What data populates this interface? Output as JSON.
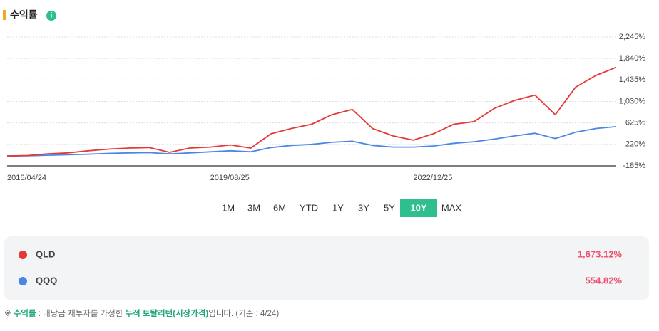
{
  "header": {
    "title": "수익률",
    "info_icon": "i"
  },
  "chart_data": {
    "type": "line",
    "categories": [
      "2016/04/24",
      null,
      null,
      null,
      null,
      null,
      null,
      null,
      null,
      null,
      "2019/08/25",
      null,
      null,
      null,
      null,
      null,
      null,
      null,
      null,
      null,
      "2022/12/25",
      null,
      null,
      null,
      null,
      null,
      null,
      null,
      null,
      null,
      null
    ],
    "series": [
      {
        "name": "QLD",
        "color": "#e53935",
        "values": [
          0,
          10,
          40,
          60,
          100,
          130,
          150,
          160,
          70,
          150,
          170,
          210,
          150,
          420,
          520,
          600,
          780,
          880,
          520,
          380,
          300,
          420,
          600,
          650,
          900,
          1050,
          1150,
          780,
          1300,
          1520,
          1673.12
        ]
      },
      {
        "name": "QQQ",
        "color": "#4a86e8",
        "values": [
          0,
          5,
          15,
          25,
          35,
          50,
          60,
          65,
          40,
          60,
          80,
          100,
          80,
          160,
          200,
          220,
          260,
          280,
          200,
          170,
          170,
          190,
          240,
          270,
          320,
          380,
          430,
          330,
          450,
          520,
          554.82
        ]
      }
    ],
    "ylim": [
      -185,
      2245
    ],
    "yticks": [
      {
        "value": -185,
        "label": "-185%"
      },
      {
        "value": 220,
        "label": "220%"
      },
      {
        "value": 625,
        "label": "625%"
      },
      {
        "value": 1030,
        "label": "1,030%"
      },
      {
        "value": 1435,
        "label": "1,435%"
      },
      {
        "value": 1840,
        "label": "1,840%"
      },
      {
        "value": 2245,
        "label": "2,245%"
      }
    ],
    "grid": true
  },
  "periods": [
    "1M",
    "3M",
    "6M",
    "YTD",
    "1Y",
    "3Y",
    "5Y",
    "10Y",
    "MAX"
  ],
  "selected_period": "10Y",
  "returns": [
    {
      "value": 1673.12,
      "label": "1,673.12%"
    },
    {
      "value": 554.82,
      "label": "554.82%"
    }
  ],
  "footnote": [
    "※ ",
    "수익률",
    " : 배당금 재투자를 가정한 ",
    "누적 토탈리턴(시장가격)",
    "입니다. (기준 : 4/24)"
  ]
}
